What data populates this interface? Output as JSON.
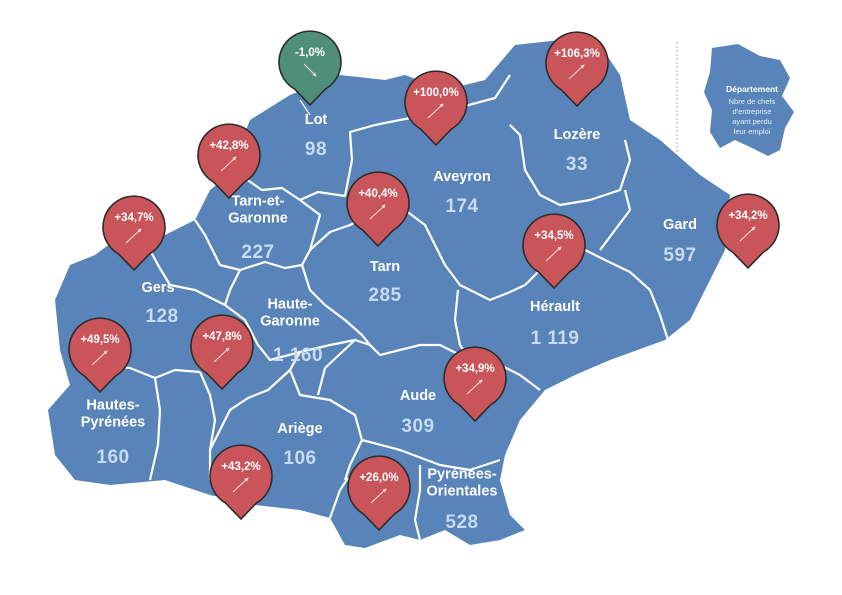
{
  "colors": {
    "region_fill": "#5884ba",
    "border": "#ffffff",
    "pin_up": "#c9555a",
    "pin_down": "#4f8f7a",
    "value_text": "#c7dcf0"
  },
  "legend": {
    "title": "Département",
    "line1": "Nbre de chefs",
    "line2": "d'entreprise",
    "line3": "ayant perdu",
    "line4": "leur emploi"
  },
  "departments": [
    {
      "id": "lot",
      "name_lines": [
        "Lot"
      ],
      "value": "98",
      "change": "-1,0%",
      "trend": "down"
    },
    {
      "id": "lozere",
      "name_lines": [
        "Lozère"
      ],
      "value": "33",
      "change": "+106,3%",
      "trend": "up"
    },
    {
      "id": "aveyron",
      "name_lines": [
        "Aveyron"
      ],
      "value": "174",
      "change": "+100,0%",
      "trend": "up"
    },
    {
      "id": "tarn-et-garonne",
      "name_lines": [
        "Tarn-et-",
        "Garonne"
      ],
      "value": "227",
      "change": "+42,8%",
      "trend": "up"
    },
    {
      "id": "gard",
      "name_lines": [
        "Gard"
      ],
      "value": "597",
      "change": "+34,2%",
      "trend": "up"
    },
    {
      "id": "gers",
      "name_lines": [
        "Gers"
      ],
      "value": "128",
      "change": "+34,7%",
      "trend": "up"
    },
    {
      "id": "tarn",
      "name_lines": [
        "Tarn"
      ],
      "value": "285",
      "change": "+40,4%",
      "trend": "up"
    },
    {
      "id": "herault",
      "name_lines": [
        "Hérault"
      ],
      "value": "1 119",
      "change": "+34,5%",
      "trend": "up"
    },
    {
      "id": "haute-garonne",
      "name_lines": [
        "Haute-",
        "Garonne"
      ],
      "value": "1 160",
      "change": "+47,8%",
      "trend": "up"
    },
    {
      "id": "hautes-pyrenees",
      "name_lines": [
        "Hautes-",
        "Pyrénées"
      ],
      "value": "160",
      "change": "+49,5%",
      "trend": "up"
    },
    {
      "id": "aude",
      "name_lines": [
        "Aude"
      ],
      "value": "309",
      "change": "+34,9%",
      "trend": "up"
    },
    {
      "id": "ariege",
      "name_lines": [
        "Ariège"
      ],
      "value": "106",
      "change": "+43,2%",
      "trend": "up"
    },
    {
      "id": "pyrenees-orientales",
      "name_lines": [
        "Pyrénées-",
        "Orientales"
      ],
      "value": "528",
      "change": "+26,0%",
      "trend": "up"
    }
  ]
}
